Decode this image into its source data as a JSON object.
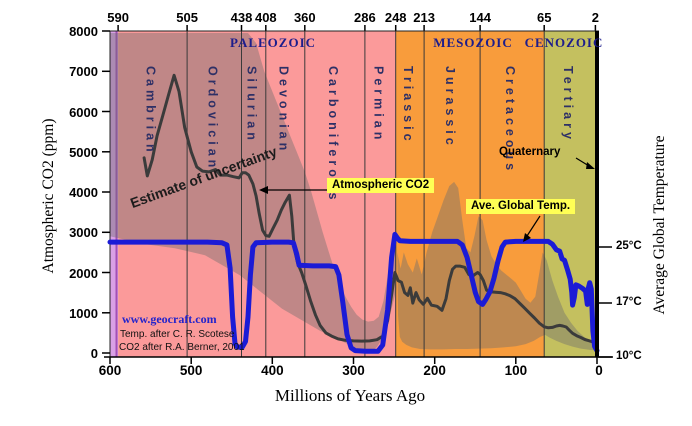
{
  "labels": {
    "estimate_uncertainty": "Estimate of uncertainty",
    "watermark": "www.geocraft.com",
    "credit_temp": "Temp. after C. R. Scotese",
    "credit_co2": "CO2 after R.A. Berner, 2001"
  },
  "chart_data": {
    "type": "line",
    "xlabel": "Millions of Years Ago",
    "ylabel_left": "Atmospheric CO2 (ppm)",
    "ylabel_right": "Average Global Temperature",
    "x_axis": {
      "min": 0,
      "max": 600,
      "ticks": [
        600,
        500,
        400,
        300,
        200,
        100,
        0
      ]
    },
    "y_left": {
      "min": 0,
      "max": 8000,
      "ticks": [
        8000,
        7000,
        6000,
        5000,
        4000,
        3000,
        2000,
        1000,
        0
      ]
    },
    "y_right_ticks": [
      {
        "label": "25°C",
        "t": 25
      },
      {
        "label": "17°C",
        "t": 17
      },
      {
        "label": "10°C",
        "t": 10
      }
    ],
    "top_ticks": [
      590,
      505,
      438,
      408,
      360,
      286,
      248,
      213,
      144,
      65,
      2
    ],
    "eras": [
      {
        "name": "PALEOZOIC",
        "start": 590,
        "end": 248
      },
      {
        "name": "MESOZOIC",
        "start": 248,
        "end": 65
      },
      {
        "name": "CENOZOIC",
        "start": 65,
        "end": 0
      }
    ],
    "periods": [
      {
        "name": "Cambrian",
        "start": 590,
        "end": 505,
        "vertical": true
      },
      {
        "name": "Ordovician",
        "start": 505,
        "end": 438,
        "vertical": true
      },
      {
        "name": "Silurian",
        "start": 438,
        "end": 408,
        "vertical": true
      },
      {
        "name": "Devonian",
        "start": 408,
        "end": 360,
        "vertical": true
      },
      {
        "name": "Carboniferous",
        "start": 360,
        "end": 286,
        "vertical": true
      },
      {
        "name": "Permian",
        "start": 286,
        "end": 248,
        "vertical": true
      },
      {
        "name": "Triassic",
        "start": 248,
        "end": 213,
        "vertical": true
      },
      {
        "name": "Jurassic",
        "start": 213,
        "end": 144,
        "vertical": true
      },
      {
        "name": "Cretaceous",
        "start": 144,
        "end": 65,
        "vertical": true
      },
      {
        "name": "Tertiary",
        "start": 65,
        "end": 2,
        "vertical": true
      },
      {
        "name": "Quaternary",
        "start": 2,
        "end": 0,
        "vertical": false
      }
    ],
    "bands": [
      {
        "start": 600,
        "end": 590,
        "color": "#d9a0e6"
      },
      {
        "start": 590,
        "end": 248,
        "color": "#fb9a9a"
      },
      {
        "start": 248,
        "end": 65,
        "color": "#f89c3c"
      },
      {
        "start": 65,
        "end": 0,
        "color": "#c4c05f"
      }
    ],
    "uncertainty_color": "rgba(110,110,110,0.42)",
    "uncertainty_polygons": [
      [
        [
          600,
          2900
        ],
        [
          600,
          7950
        ],
        [
          560,
          7950
        ],
        [
          520,
          7950
        ],
        [
          480,
          7950
        ],
        [
          430,
          7950
        ],
        [
          420,
          7700
        ],
        [
          410,
          7000
        ],
        [
          400,
          6500
        ],
        [
          392,
          6100
        ],
        [
          384,
          5700
        ],
        [
          376,
          5300
        ],
        [
          368,
          4900
        ],
        [
          360,
          4500
        ],
        [
          352,
          4000
        ],
        [
          345,
          3500
        ],
        [
          338,
          3000
        ],
        [
          331,
          2550
        ],
        [
          324,
          2100
        ],
        [
          317,
          1700
        ],
        [
          310,
          1400
        ],
        [
          303,
          1150
        ],
        [
          296,
          950
        ],
        [
          289,
          830
        ],
        [
          282,
          780
        ],
        [
          275,
          800
        ],
        [
          269,
          900
        ],
        [
          263,
          1300
        ],
        [
          258,
          1900
        ],
        [
          253,
          2600
        ],
        [
          249,
          2950
        ],
        [
          247,
          3050
        ],
        [
          247,
          1600
        ],
        [
          253,
          1100
        ],
        [
          259,
          700
        ],
        [
          265,
          350
        ],
        [
          271,
          150
        ],
        [
          278,
          40
        ],
        [
          286,
          0
        ],
        [
          310,
          250
        ],
        [
          341,
          550
        ],
        [
          388,
          1100
        ],
        [
          440,
          1930
        ],
        [
          483,
          2430
        ],
        [
          520,
          2600
        ],
        [
          556,
          2700
        ],
        [
          600,
          2900
        ]
      ],
      [
        [
          246,
          2500
        ],
        [
          242,
          2100
        ],
        [
          238,
          2500
        ],
        [
          233,
          2200
        ],
        [
          227,
          2000
        ],
        [
          222,
          2350
        ],
        [
          216,
          1950
        ],
        [
          210,
          2500
        ],
        [
          203,
          3000
        ],
        [
          196,
          3400
        ],
        [
          189,
          3800
        ],
        [
          182,
          4150
        ],
        [
          176,
          4250
        ],
        [
          171,
          4100
        ],
        [
          166,
          3300
        ],
        [
          161,
          2600
        ],
        [
          156,
          2500
        ],
        [
          151,
          2900
        ],
        [
          146,
          3400
        ],
        [
          141,
          3300
        ],
        [
          136,
          2800
        ],
        [
          130,
          2400
        ],
        [
          124,
          2200
        ],
        [
          118,
          2050
        ],
        [
          112,
          1950
        ],
        [
          106,
          1850
        ],
        [
          100,
          1750
        ],
        [
          94,
          1550
        ],
        [
          88,
          1350
        ],
        [
          82,
          1250
        ],
        [
          76,
          1400
        ],
        [
          71,
          2000
        ],
        [
          67,
          2500
        ],
        [
          62,
          2300
        ],
        [
          55,
          1800
        ],
        [
          48,
          1400
        ],
        [
          40,
          1000
        ],
        [
          32,
          750
        ],
        [
          24,
          550
        ],
        [
          16,
          400
        ],
        [
          8,
          300
        ],
        [
          2,
          270
        ],
        [
          0,
          260
        ],
        [
          0,
          60
        ],
        [
          10,
          80
        ],
        [
          20,
          110
        ],
        [
          30,
          160
        ],
        [
          40,
          220
        ],
        [
          50,
          300
        ],
        [
          58,
          380
        ],
        [
          64,
          450
        ],
        [
          70,
          400
        ],
        [
          78,
          300
        ],
        [
          88,
          220
        ],
        [
          100,
          170
        ],
        [
          115,
          140
        ],
        [
          130,
          120
        ],
        [
          145,
          110
        ],
        [
          160,
          100
        ],
        [
          175,
          100
        ],
        [
          190,
          90
        ],
        [
          205,
          90
        ],
        [
          218,
          100
        ],
        [
          228,
          140
        ],
        [
          235,
          200
        ],
        [
          240,
          280
        ],
        [
          243,
          400
        ],
        [
          245,
          900
        ]
      ]
    ],
    "series": [
      {
        "name": "Atmospheric CO2",
        "axis": "left",
        "color": "#3b3b3b",
        "width": 3,
        "points": [
          [
            558,
            4850
          ],
          [
            554,
            4400
          ],
          [
            548,
            4800
          ],
          [
            542,
            5400
          ],
          [
            535,
            5900
          ],
          [
            528,
            6400
          ],
          [
            521,
            6900
          ],
          [
            515,
            6500
          ],
          [
            508,
            5600
          ],
          [
            500,
            5000
          ],
          [
            493,
            4620
          ],
          [
            486,
            4520
          ],
          [
            478,
            4500
          ],
          [
            470,
            4560
          ],
          [
            464,
            4420
          ],
          [
            456,
            4420
          ],
          [
            448,
            4380
          ],
          [
            441,
            4350
          ],
          [
            437,
            4480
          ],
          [
            433,
            4480
          ],
          [
            429,
            4420
          ],
          [
            424,
            4200
          ],
          [
            420,
            3900
          ],
          [
            416,
            3450
          ],
          [
            412,
            3050
          ],
          [
            408,
            2920
          ],
          [
            404,
            2900
          ],
          [
            399,
            3100
          ],
          [
            394,
            3300
          ],
          [
            389,
            3550
          ],
          [
            384,
            3750
          ],
          [
            379,
            3920
          ],
          [
            376,
            3400
          ],
          [
            373,
            2600
          ],
          [
            369,
            2250
          ],
          [
            364,
            2000
          ],
          [
            359,
            1700
          ],
          [
            353,
            1300
          ],
          [
            347,
            950
          ],
          [
            341,
            680
          ],
          [
            334,
            500
          ],
          [
            327,
            420
          ],
          [
            319,
            350
          ],
          [
            310,
            315
          ],
          [
            300,
            300
          ],
          [
            290,
            295
          ],
          [
            280,
            300
          ],
          [
            271,
            330
          ],
          [
            264,
            420
          ],
          [
            258,
            800
          ],
          [
            253,
            1450
          ],
          [
            249,
            2000
          ],
          [
            245,
            1800
          ],
          [
            241,
            1760
          ],
          [
            237,
            1500
          ],
          [
            233,
            1430
          ],
          [
            230,
            1620
          ],
          [
            227,
            1240
          ],
          [
            223,
            1500
          ],
          [
            219,
            1320
          ],
          [
            214,
            1210
          ],
          [
            209,
            1360
          ],
          [
            204,
            1190
          ],
          [
            197,
            1160
          ],
          [
            191,
            1060
          ],
          [
            186,
            1350
          ],
          [
            182,
            1800
          ],
          [
            178,
            2080
          ],
          [
            174,
            2160
          ],
          [
            169,
            2160
          ],
          [
            163,
            2130
          ],
          [
            158,
            1950
          ],
          [
            154,
            1900
          ],
          [
            150,
            1960
          ],
          [
            147,
            2000
          ],
          [
            144,
            1950
          ],
          [
            140,
            1800
          ],
          [
            136,
            1560
          ],
          [
            131,
            1520
          ],
          [
            125,
            1510
          ],
          [
            119,
            1500
          ],
          [
            113,
            1470
          ],
          [
            107,
            1420
          ],
          [
            101,
            1350
          ],
          [
            95,
            1230
          ],
          [
            89,
            1110
          ],
          [
            83,
            990
          ],
          [
            77,
            870
          ],
          [
            71,
            740
          ],
          [
            65,
            650
          ],
          [
            60,
            625
          ],
          [
            55,
            635
          ],
          [
            50,
            670
          ],
          [
            46,
            685
          ],
          [
            42,
            670
          ],
          [
            38,
            645
          ],
          [
            34,
            565
          ],
          [
            30,
            490
          ],
          [
            25,
            430
          ],
          [
            20,
            385
          ],
          [
            15,
            335
          ],
          [
            10,
            305
          ],
          [
            5,
            275
          ],
          [
            0,
            255
          ]
        ]
      },
      {
        "name": "Ave. Global Temp.",
        "axis": "right",
        "color": "#1b1bd6",
        "width": 5,
        "points": [
          [
            600,
            25.7
          ],
          [
            560,
            25.7
          ],
          [
            520,
            25.7
          ],
          [
            480,
            25.7
          ],
          [
            462,
            25.6
          ],
          [
            456,
            25.3
          ],
          [
            452,
            22
          ],
          [
            449,
            15
          ],
          [
            446,
            11.2
          ],
          [
            443,
            10.7
          ],
          [
            437,
            10.7
          ],
          [
            433,
            11.5
          ],
          [
            430,
            15
          ],
          [
            427,
            21
          ],
          [
            424,
            25
          ],
          [
            420,
            25.6
          ],
          [
            400,
            25.7
          ],
          [
            380,
            25.7
          ],
          [
            374,
            25.6
          ],
          [
            370,
            24
          ],
          [
            367,
            22.4
          ],
          [
            350,
            22.3
          ],
          [
            330,
            22.3
          ],
          [
            322,
            22.2
          ],
          [
            318,
            21
          ],
          [
            313,
            17
          ],
          [
            308,
            12.5
          ],
          [
            303,
            10.6
          ],
          [
            298,
            10.2
          ],
          [
            285,
            10.1
          ],
          [
            270,
            10.1
          ],
          [
            264,
            11
          ],
          [
            258,
            16
          ],
          [
            253,
            23.5
          ],
          [
            249,
            26.8
          ],
          [
            246,
            26.3
          ],
          [
            243,
            25.9
          ],
          [
            230,
            25.8
          ],
          [
            210,
            25.8
          ],
          [
            190,
            25.8
          ],
          [
            172,
            25.8
          ],
          [
            166,
            25.3
          ],
          [
            160,
            23.5
          ],
          [
            155,
            21
          ],
          [
            150,
            18.5
          ],
          [
            146,
            17.2
          ],
          [
            141,
            16.8
          ],
          [
            137,
            17.5
          ],
          [
            132,
            18.6
          ],
          [
            127,
            20.5
          ],
          [
            122,
            23
          ],
          [
            117,
            25
          ],
          [
            113,
            25.7
          ],
          [
            100,
            25.8
          ],
          [
            85,
            25.8
          ],
          [
            70,
            25.8
          ],
          [
            60,
            25.8
          ],
          [
            55,
            25.4
          ],
          [
            50,
            24.6
          ],
          [
            46,
            24.4
          ],
          [
            43,
            23.3
          ],
          [
            40,
            23.1
          ],
          [
            36,
            21.6
          ],
          [
            33,
            20.4
          ],
          [
            31,
            18.5
          ],
          [
            30,
            16.7
          ],
          [
            28,
            17.8
          ],
          [
            26,
            19.6
          ],
          [
            22,
            19.4
          ],
          [
            18,
            19.1
          ],
          [
            14,
            18.7
          ],
          [
            12,
            16.8
          ],
          [
            11,
            19
          ],
          [
            9,
            19.9
          ],
          [
            7,
            19
          ],
          [
            5,
            13
          ],
          [
            3,
            10.8
          ],
          [
            1,
            10.4
          ],
          [
            0,
            10.2
          ]
        ]
      }
    ]
  }
}
